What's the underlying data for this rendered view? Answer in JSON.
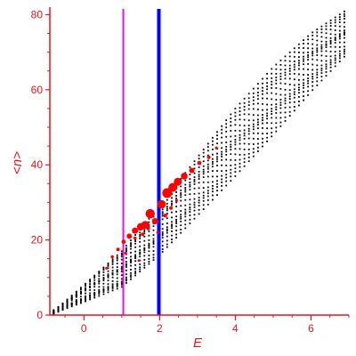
{
  "chart_data": {
    "type": "scatter",
    "xlabel": "E",
    "ylabel": "<n>",
    "xlim": [
      -0.9,
      7.0
    ],
    "ylim": [
      0,
      82
    ],
    "x_ticks": [
      "0",
      "2",
      "4",
      "6"
    ],
    "y_ticks": [
      "0",
      "20",
      "40",
      "60",
      "80"
    ],
    "grid": false,
    "colors": {
      "axis": "#e8141d",
      "background_points": "#000000",
      "highlight_points": "#ff0000",
      "line_magenta": "#ff00ff",
      "line_blue": "#0000ff"
    },
    "vertical_lines": [
      {
        "x": 1.04,
        "color": "#ff00ff"
      },
      {
        "x": 1.98,
        "color": "#0000ff"
      }
    ],
    "series": [
      {
        "marker": "small black dots",
        "x_range": [
          -0.8,
          6.9
        ],
        "y_range": [
          1,
          81
        ],
        "lower_envelope": [
          [
            -0.8,
            0.5
          ],
          [
            0.0,
            3.5
          ],
          [
            1.0,
            7.5
          ],
          [
            2.0,
            16.0
          ],
          [
            3.0,
            26.5
          ],
          [
            4.0,
            37.0
          ],
          [
            5.0,
            48.0
          ],
          [
            6.0,
            59.5
          ],
          [
            6.9,
            69.0
          ]
        ],
        "upper_envelope": [
          [
            -0.8,
            1.0
          ],
          [
            0.0,
            8.0
          ],
          [
            1.0,
            17.0
          ],
          [
            2.0,
            29.0
          ],
          [
            3.0,
            42.0
          ],
          [
            4.0,
            55.0
          ],
          [
            5.0,
            66.0
          ],
          [
            6.0,
            75.0
          ],
          [
            6.9,
            81.0
          ]
        ]
      },
      {
        "marker": "red dots, size increasing near E = 2",
        "points": [
          {
            "x": 0.6,
            "y": 12.5,
            "size": 1.6
          },
          {
            "x": 0.75,
            "y": 15.5,
            "size": 1.8
          },
          {
            "x": 0.9,
            "y": 17.5,
            "size": 2.0
          },
          {
            "x": 1.05,
            "y": 19.5,
            "size": 2.4
          },
          {
            "x": 1.2,
            "y": 21.0,
            "size": 3.0
          },
          {
            "x": 1.35,
            "y": 22.5,
            "size": 3.5
          },
          {
            "x": 1.5,
            "y": 23.5,
            "size": 4.2
          },
          {
            "x": 1.62,
            "y": 24.0,
            "size": 4.5
          },
          {
            "x": 1.75,
            "y": 27.0,
            "size": 5.2
          },
          {
            "x": 1.88,
            "y": 25.0,
            "size": 3.5
          },
          {
            "x": 2.05,
            "y": 29.5,
            "size": 4.8
          },
          {
            "x": 2.2,
            "y": 32.5,
            "size": 5.5
          },
          {
            "x": 2.35,
            "y": 34.0,
            "size": 5.0
          },
          {
            "x": 2.48,
            "y": 35.5,
            "size": 4.5
          },
          {
            "x": 2.65,
            "y": 37.0,
            "size": 3.8
          },
          {
            "x": 2.85,
            "y": 38.5,
            "size": 3.0
          },
          {
            "x": 3.05,
            "y": 40.5,
            "size": 2.4
          },
          {
            "x": 3.3,
            "y": 42.0,
            "size": 2.0
          },
          {
            "x": 3.5,
            "y": 44.5,
            "size": 1.6
          },
          {
            "x": 1.35,
            "y": 20.5,
            "size": 1.8
          },
          {
            "x": 1.55,
            "y": 21.5,
            "size": 2.0
          },
          {
            "x": 1.7,
            "y": 23.0,
            "size": 1.8
          },
          {
            "x": 1.95,
            "y": 22.0,
            "size": 1.6
          },
          {
            "x": 2.15,
            "y": 26.5,
            "size": 2.2
          },
          {
            "x": 2.3,
            "y": 28.5,
            "size": 2.0
          },
          {
            "x": 1.1,
            "y": 16.5,
            "size": 1.5
          },
          {
            "x": 1.45,
            "y": 14.5,
            "size": 1.4
          },
          {
            "x": 2.45,
            "y": 30.5,
            "size": 1.6
          }
        ]
      }
    ]
  }
}
